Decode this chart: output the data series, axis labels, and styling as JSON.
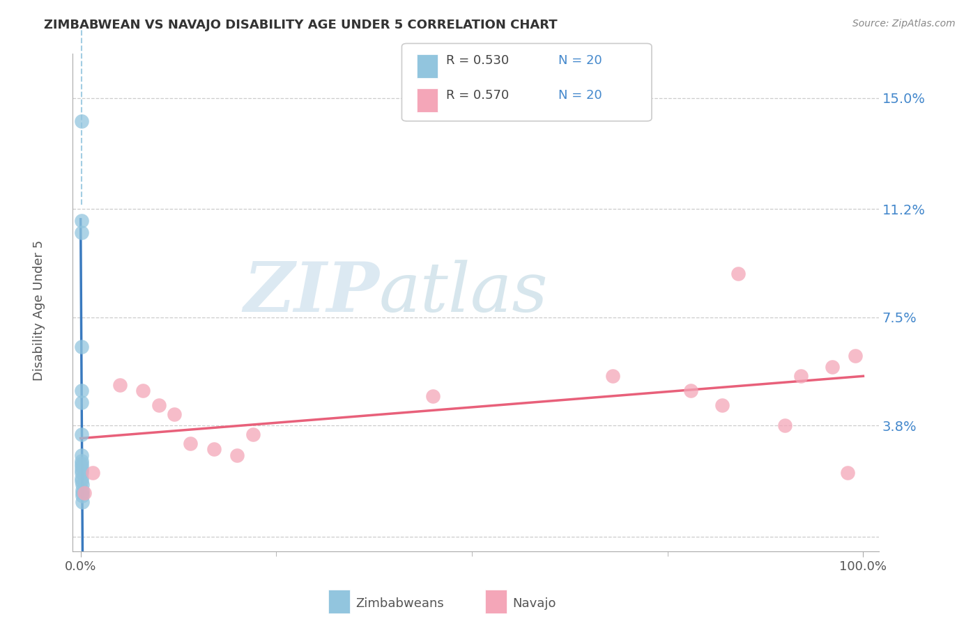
{
  "title": "ZIMBABWEAN VS NAVAJO DISABILITY AGE UNDER 5 CORRELATION CHART",
  "source": "Source: ZipAtlas.com",
  "ylabel_label": "Disability Age Under 5",
  "legend_label_bottom_left": "Zimbabweans",
  "legend_label_bottom_right": "Navajo",
  "legend_r1": "R = 0.530",
  "legend_n1": "N = 20",
  "legend_r2": "R = 0.570",
  "legend_n2": "N = 20",
  "blue_color": "#92c5de",
  "pink_color": "#f4a6b8",
  "blue_line_color": "#3a7abf",
  "pink_line_color": "#e8607a",
  "watermark_zip": "ZIP",
  "watermark_atlas": "atlas",
  "blue_scatter_x": [
    0.1,
    0.1,
    0.1,
    0.1,
    0.1,
    0.1,
    0.1,
    0.1,
    0.15,
    0.15,
    0.15,
    0.15,
    0.15,
    0.15,
    0.15,
    0.2,
    0.2,
    0.2,
    0.25,
    0.25
  ],
  "blue_scatter_y": [
    14.2,
    10.8,
    10.4,
    6.5,
    5.0,
    4.6,
    3.5,
    2.8,
    2.6,
    2.5,
    2.4,
    2.3,
    2.2,
    2.0,
    1.9,
    1.8,
    1.6,
    1.5,
    1.4,
    1.2
  ],
  "pink_scatter_x": [
    0.5,
    1.5,
    5.0,
    8.0,
    10.0,
    12.0,
    14.0,
    17.0,
    20.0,
    22.0,
    45.0,
    68.0,
    78.0,
    82.0,
    84.0,
    90.0,
    92.0,
    96.0,
    98.0,
    99.0
  ],
  "pink_scatter_y": [
    1.5,
    2.2,
    5.2,
    5.0,
    4.5,
    4.2,
    3.2,
    3.0,
    2.8,
    3.5,
    4.8,
    5.5,
    5.0,
    4.5,
    9.0,
    3.8,
    5.5,
    5.8,
    2.2,
    6.2
  ],
  "y_tick_positions": [
    0.0,
    3.8,
    7.5,
    11.2,
    15.0
  ],
  "y_tick_labels": [
    "",
    "3.8%",
    "7.5%",
    "11.2%",
    "15.0%"
  ],
  "x_tick_positions": [
    0,
    100
  ],
  "x_tick_labels": [
    "0.0%",
    "100.0%"
  ],
  "xmin": -1,
  "xmax": 102,
  "ymin": -0.5,
  "ymax": 16.5
}
